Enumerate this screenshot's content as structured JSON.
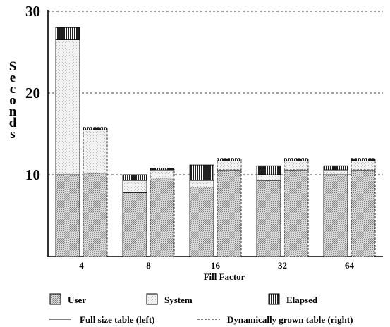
{
  "chart_data": {
    "type": "bar",
    "stacked": true,
    "xlabel": "Fill Factor",
    "ylabel": "Seconds",
    "categories": [
      "4",
      "8",
      "16",
      "32",
      "64"
    ],
    "ylim": [
      0,
      30
    ],
    "yticks": [
      10,
      20,
      30
    ],
    "grid": "dashed horizontal at y ticks",
    "groups": [
      {
        "name": "Full size table (left)",
        "line_style": "solid",
        "series": [
          {
            "name": "User",
            "values": [
              10.0,
              7.8,
              8.5,
              9.3,
              10.0
            ]
          },
          {
            "name": "System",
            "values": [
              16.5,
              1.5,
              0.8,
              0.7,
              0.6
            ]
          },
          {
            "name": "Elapsed",
            "values": [
              1.5,
              0.7,
              1.9,
              1.1,
              0.5
            ]
          }
        ]
      },
      {
        "name": "Dynamically grown table (right)",
        "line_style": "dashed",
        "series": [
          {
            "name": "User",
            "values": [
              10.2,
              9.6,
              10.6,
              10.6,
              10.6
            ]
          },
          {
            "name": "System",
            "values": [
              5.3,
              1.0,
              1.1,
              1.1,
              1.1
            ]
          },
          {
            "name": "Elapsed",
            "values": [
              0.3,
              0.2,
              0.3,
              0.3,
              0.3
            ]
          }
        ]
      }
    ],
    "legend": {
      "placement": "bottom",
      "fills": [
        "User",
        "System",
        "Elapsed"
      ],
      "lines": [
        "Full size table (left)",
        "Dynamically grown table (right)"
      ]
    },
    "colors": {
      "user": "#c9c9c9",
      "system": "#ededed",
      "elapsed": "#3a3a3a",
      "grid": "#000000"
    }
  }
}
